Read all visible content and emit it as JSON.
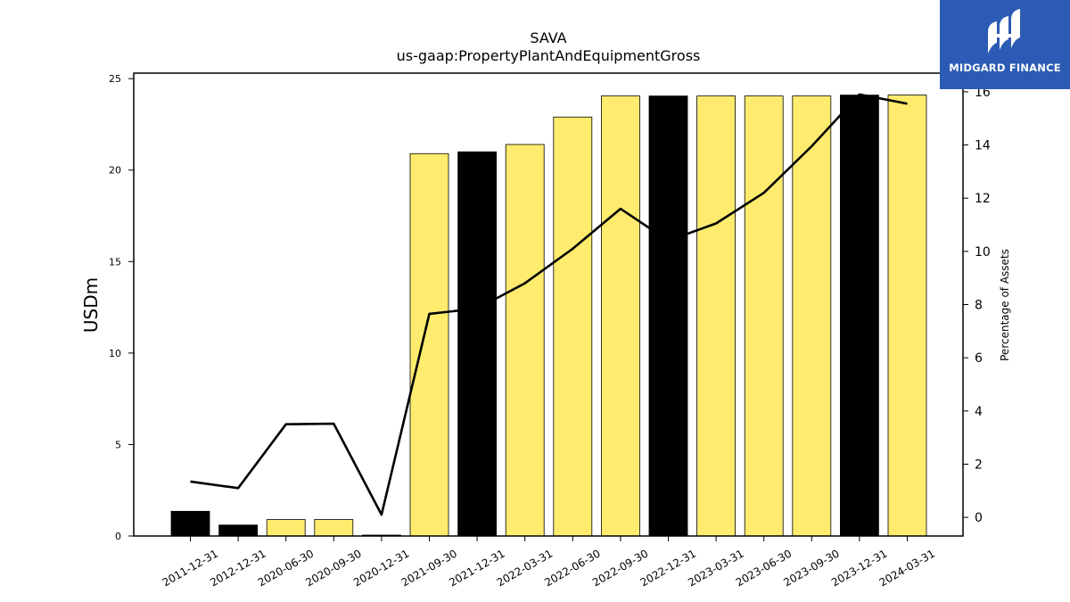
{
  "chart_data": {
    "type": "bar",
    "title": "SAVA",
    "subtitle": "us-gaap:PropertyPlantAndEquipmentGross",
    "ylabel": "USDm",
    "y2label": "Percentage of Assets",
    "ylim": [
      0,
      25.3
    ],
    "y2lim": [
      -0.7,
      16.7
    ],
    "yticks": [
      0,
      5,
      10,
      15,
      20,
      25
    ],
    "y2ticks": [
      0,
      2,
      4,
      6,
      8,
      10,
      12,
      14,
      16
    ],
    "categories": [
      "2011-12-31",
      "2012-12-31",
      "2020-06-30",
      "2020-09-30",
      "2020-12-31",
      "2021-09-30",
      "2021-12-31",
      "2022-03-31",
      "2022-06-30",
      "2022-09-30",
      "2022-12-31",
      "2023-03-31",
      "2023-06-30",
      "2023-09-30",
      "2023-12-31",
      "2024-03-31"
    ],
    "series": [
      {
        "type": "bar",
        "axis": "left",
        "values": [
          1.35,
          0.6,
          0.9,
          0.9,
          0.05,
          20.9,
          21.0,
          21.4,
          22.9,
          24.05,
          24.05,
          24.05,
          24.05,
          24.05,
          24.1,
          24.1
        ],
        "colors": [
          "#000000",
          "#000000",
          "#ffec6e",
          "#ffec6e",
          "#000000",
          "#ffec6e",
          "#000000",
          "#ffec6e",
          "#ffec6e",
          "#ffec6e",
          "#000000",
          "#ffec6e",
          "#ffec6e",
          "#ffec6e",
          "#000000",
          "#ffec6e"
        ]
      },
      {
        "type": "line",
        "axis": "right",
        "color": "#000000",
        "values": [
          1.35,
          1.1,
          3.5,
          3.52,
          0.1,
          7.65,
          7.85,
          8.8,
          10.1,
          11.6,
          10.4,
          11.05,
          12.2,
          13.95,
          15.9,
          15.55
        ]
      }
    ],
    "grid": false
  },
  "logo": {
    "text": "MIDGARD FINANCE",
    "background": "#2b5bb4"
  }
}
